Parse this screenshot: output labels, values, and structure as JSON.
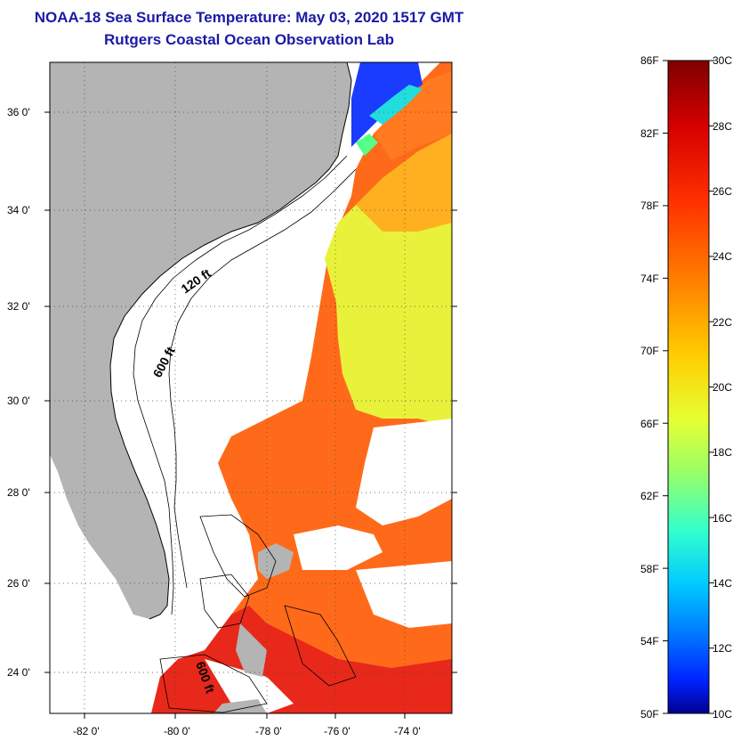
{
  "title": {
    "line1": "NOAA-18 Sea Surface Temperature:  May 03, 2020 1517 GMT",
    "line2": "Rutgers Coastal Ocean Observation Lab"
  },
  "map": {
    "lat_labels": [
      "24 0'",
      "26 0'",
      "28 0'",
      "30 0'",
      "32 0'",
      "34 0'",
      "36 0'"
    ],
    "lon_labels": [
      "-82 0'",
      "-80 0'",
      "-78 0'",
      "-76 0'",
      "-74 0'"
    ],
    "contour_labels": [
      "120 ft",
      "600 ft",
      "600 ft"
    ],
    "colors": {
      "land": "#b4b4b4",
      "cloud": "#ffffff"
    }
  },
  "colorbar": {
    "f_labels": [
      "86F",
      "82F",
      "78F",
      "74F",
      "70F",
      "66F",
      "62F",
      "58F",
      "54F",
      "50F"
    ],
    "c_labels": [
      "30C",
      "28C",
      "26C",
      "24C",
      "22C",
      "20C",
      "18C",
      "16C",
      "14C",
      "12C",
      "10C"
    ],
    "range_c": [
      10,
      30
    ],
    "range_f": [
      50,
      86
    ],
    "colors": [
      "#800000",
      "#d40000",
      "#ff3300",
      "#ff8800",
      "#ffcc00",
      "#e6ff33",
      "#99ff66",
      "#33ffcc",
      "#00ccff",
      "#0077ff",
      "#0022ff",
      "#00008f"
    ]
  }
}
